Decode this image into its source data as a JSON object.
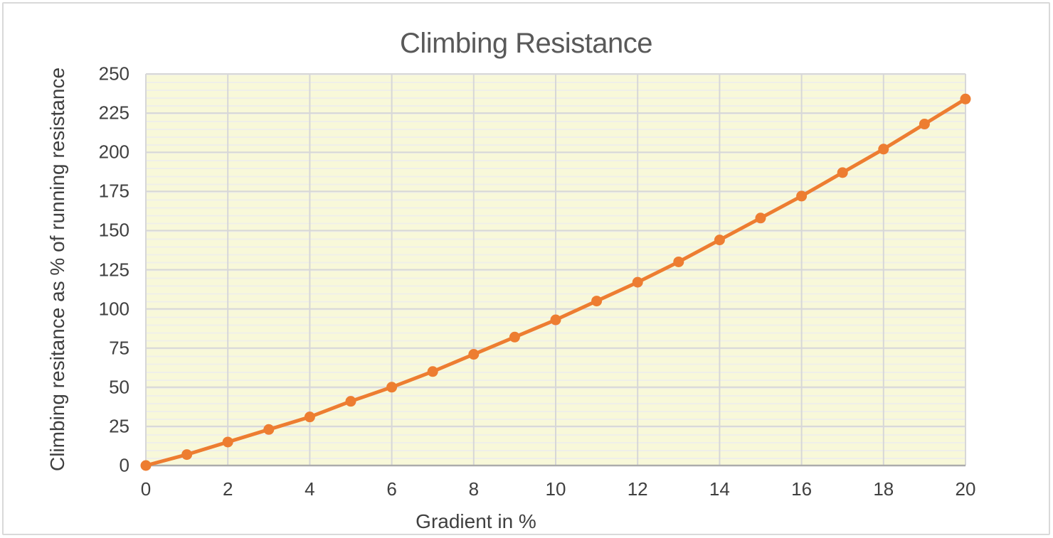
{
  "window": {
    "background_color": "#FFFFFF",
    "frame_border_color": "#D9D9D9"
  },
  "chart": {
    "title": "Climbing Resistance",
    "x_axis_title": "Gradient in %",
    "y_axis_title": "Climbing resitance as % of running resistance"
  },
  "chart_data": {
    "type": "line",
    "title": "Climbing Resistance",
    "xlabel": "Gradient in %",
    "ylabel": "Climbing resitance as % of running resistance",
    "x": [
      0,
      1,
      2,
      3,
      4,
      5,
      6,
      7,
      8,
      9,
      10,
      11,
      12,
      13,
      14,
      15,
      16,
      17,
      18,
      19,
      20
    ],
    "y": [
      0,
      7,
      15,
      23,
      31,
      41,
      50,
      60,
      71,
      82,
      93,
      105,
      117,
      130,
      144,
      158,
      172,
      187,
      202,
      218,
      234
    ],
    "xlim": [
      0,
      20
    ],
    "ylim": [
      0,
      250
    ],
    "x_ticks": [
      0,
      2,
      4,
      6,
      8,
      10,
      12,
      14,
      16,
      18,
      20
    ],
    "y_ticks": [
      0,
      25,
      50,
      75,
      100,
      125,
      150,
      175,
      200,
      225,
      250
    ],
    "y_minor_step": 5,
    "grid": "major vertical + major horizontal gray lines, minor horizontal pale stripes",
    "legend": false,
    "marker": "circle",
    "line_color": "#ED7D31",
    "marker_color": "#ED7D31",
    "plot_bg_color": "#F8F8D9",
    "minor_grid_color": "#EFEFE9",
    "major_grid_color": "#D7D7D7",
    "axis_line_color": "#ACACAC",
    "title_color": "#595959",
    "tick_label_color": "#404040"
  }
}
